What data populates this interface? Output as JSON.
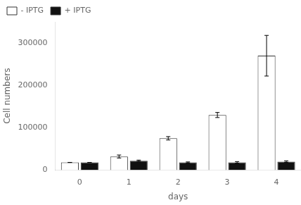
{
  "chart_data": {
    "type": "bar",
    "xlabel": "days",
    "ylabel": "Cell numbers",
    "categories": [
      "0",
      "1",
      "2",
      "3",
      "4"
    ],
    "series": [
      {
        "name": "- IPTG",
        "color": "#ffffff",
        "values": [
          18000,
          32000,
          75000,
          130000,
          270000
        ],
        "errors": [
          0,
          3500,
          4000,
          6000,
          48000
        ]
      },
      {
        "name": "+ IPTG",
        "color": "#111111",
        "values": [
          18000,
          22000,
          18000,
          18000,
          20000
        ],
        "errors": [
          0,
          1500,
          1200,
          2000,
          1800
        ]
      }
    ],
    "ylim": [
      0,
      350000
    ],
    "yticks": [
      0,
      100000,
      200000,
      300000
    ],
    "grid": false,
    "legend": "upper left"
  }
}
